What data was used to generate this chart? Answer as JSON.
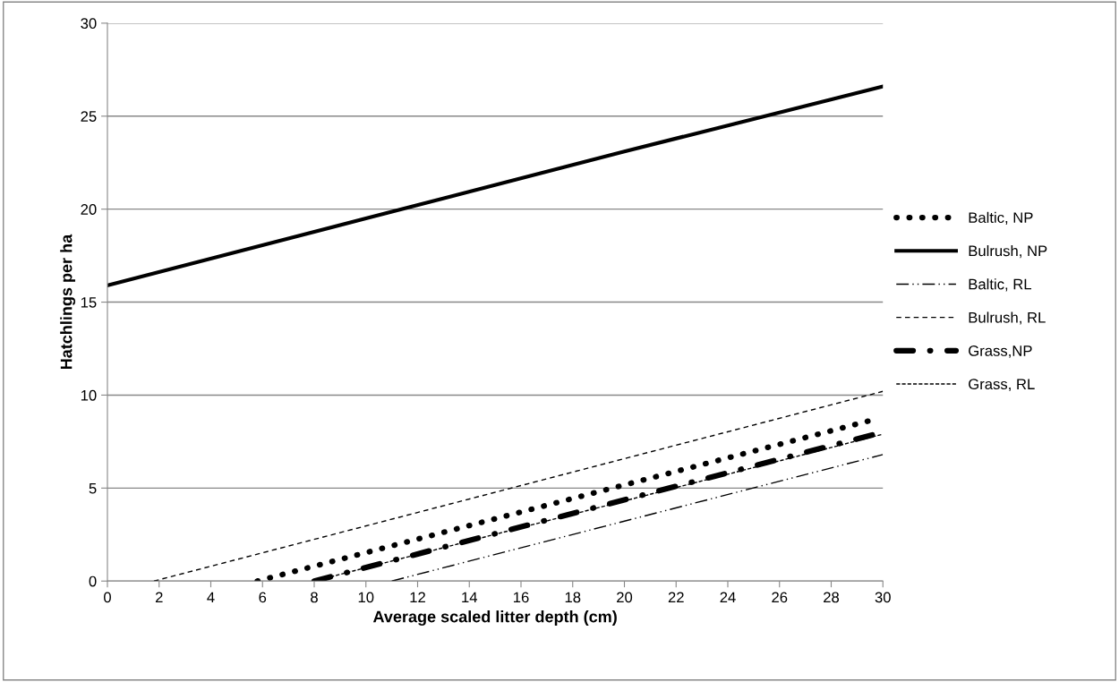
{
  "chart_data": {
    "type": "line",
    "xlabel": "Average scaled litter depth (cm)",
    "ylabel": "Hatchlings per ha",
    "xlim": [
      0,
      30
    ],
    "xticks": [
      0,
      2,
      4,
      6,
      8,
      10,
      12,
      14,
      16,
      18,
      20,
      22,
      24,
      26,
      28,
      30
    ],
    "ylim": [
      0,
      30
    ],
    "yticks": [
      0,
      5,
      10,
      15,
      20,
      25,
      30
    ],
    "grid": "y",
    "legend": "right",
    "marker": "none",
    "series": [
      {
        "name": "Baltic, NP",
        "color": "#000000",
        "line_style": "dotted",
        "x": [
          5.8,
          29.7
        ],
        "values": [
          0,
          8.7
        ]
      },
      {
        "name": "Bulrush, NP",
        "color": "#000000",
        "line_style": "solid",
        "x": [
          0,
          10,
          20,
          30
        ],
        "values": [
          15.9,
          19.5,
          23.1,
          26.6
        ]
      },
      {
        "name": "Baltic, RL",
        "color": "#000000",
        "line_style": "dashdotdot",
        "x": [
          11,
          30
        ],
        "values": [
          0,
          6.8
        ]
      },
      {
        "name": "Bulrush, RL",
        "color": "#000000",
        "line_style": "dashed",
        "x": [
          1.8,
          30
        ],
        "values": [
          0,
          10.2
        ]
      },
      {
        "name": "Grass,NP",
        "color": "#000000",
        "line_style": "dashdot",
        "x": [
          8,
          29.7
        ],
        "values": [
          0,
          7.9
        ]
      },
      {
        "name": "Grass, RL",
        "color": "#000000",
        "line_style": "finedashed",
        "x": [
          8,
          30
        ],
        "values": [
          0,
          7.9
        ]
      }
    ]
  }
}
